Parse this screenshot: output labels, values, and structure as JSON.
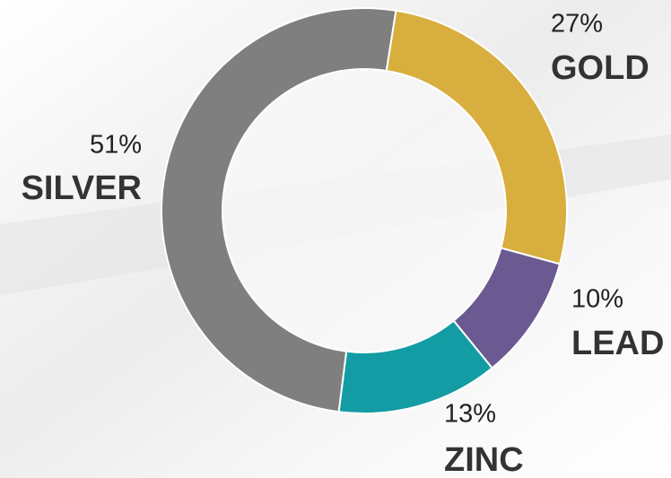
{
  "chart_data": {
    "type": "donut",
    "categories": [
      "GOLD",
      "LEAD",
      "ZINC",
      "SILVER"
    ],
    "values": [
      27,
      10,
      13,
      51
    ],
    "value_labels": [
      "27%",
      "10%",
      "13%",
      "51%"
    ],
    "colors": [
      "#d8ae3e",
      "#6a5a91",
      "#139ca3",
      "#7f7f7f"
    ]
  }
}
